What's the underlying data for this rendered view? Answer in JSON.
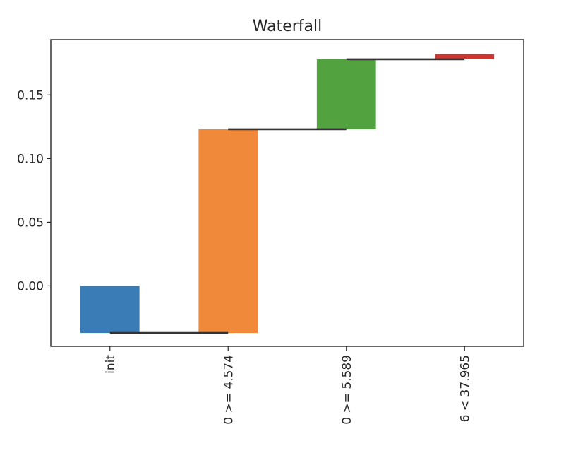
{
  "chart_data": {
    "type": "bar",
    "title": "Waterfall",
    "xlabel": "",
    "ylabel": "",
    "categories": [
      "init",
      "0 >= 4.574",
      "0 >= 5.589",
      "6 < 37.965"
    ],
    "bars": [
      {
        "category": "init",
        "bottom": -0.037,
        "top": 0.0,
        "color": "#3a7cb6"
      },
      {
        "category": "0 >= 4.574",
        "bottom": -0.037,
        "top": 0.123,
        "color": "#f0893a"
      },
      {
        "category": "0 >= 5.589",
        "bottom": 0.123,
        "top": 0.178,
        "color": "#52a240"
      },
      {
        "category": "6 < 37.965",
        "bottom": 0.178,
        "top": 0.182,
        "color": "#cf3631"
      }
    ],
    "connectors": [
      -0.037,
      0.123,
      0.178
    ],
    "y_ticks": [
      0.0,
      0.05,
      0.1,
      0.15
    ],
    "y_tick_labels": [
      "0.00",
      "0.05",
      "0.10",
      "0.15"
    ],
    "ylim": [
      -0.0475,
      0.1935
    ],
    "grid": false,
    "legend": "none"
  }
}
